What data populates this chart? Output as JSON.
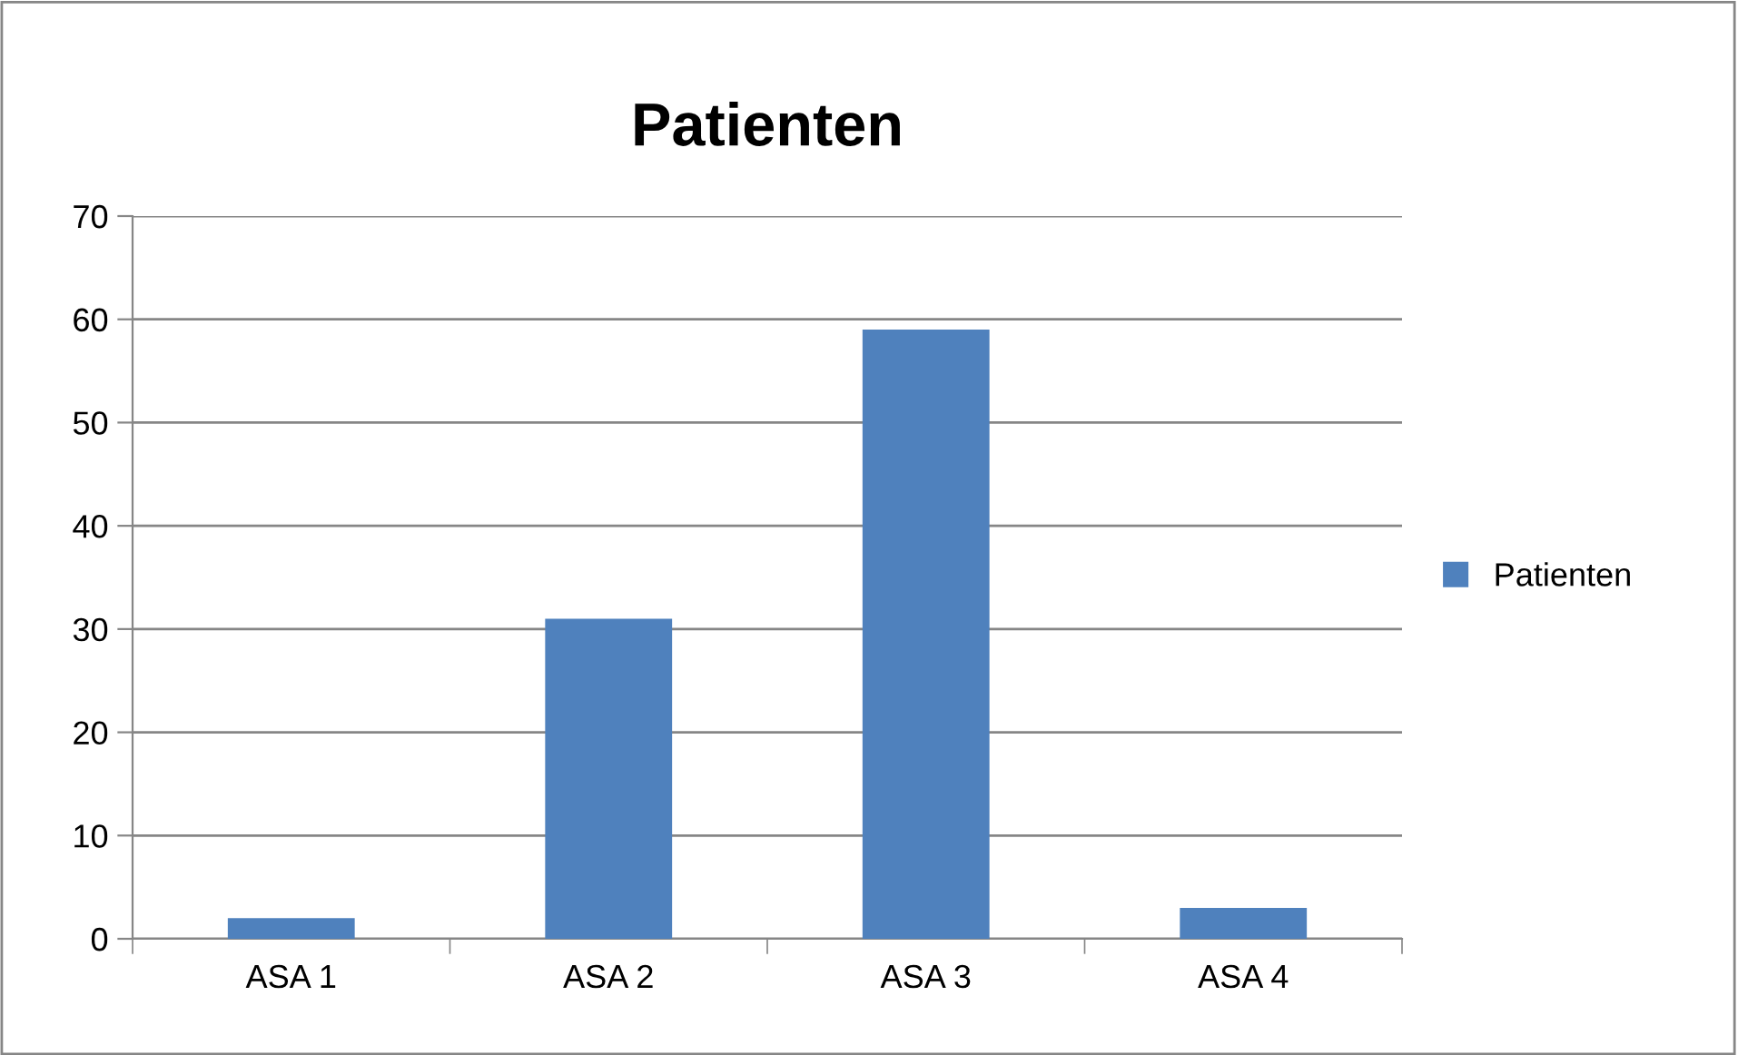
{
  "chart_data": {
    "type": "bar",
    "title": "Patienten",
    "categories": [
      "ASA 1",
      "ASA 2",
      "ASA 3",
      "ASA 4"
    ],
    "series": [
      {
        "name": "Patienten",
        "color": "#4f81bd",
        "values": [
          2,
          31,
          59,
          3
        ]
      }
    ],
    "ylim": [
      0,
      70
    ],
    "yticks": [
      0,
      10,
      20,
      30,
      40,
      50,
      60,
      70
    ],
    "grid": "y",
    "legend": "right"
  }
}
